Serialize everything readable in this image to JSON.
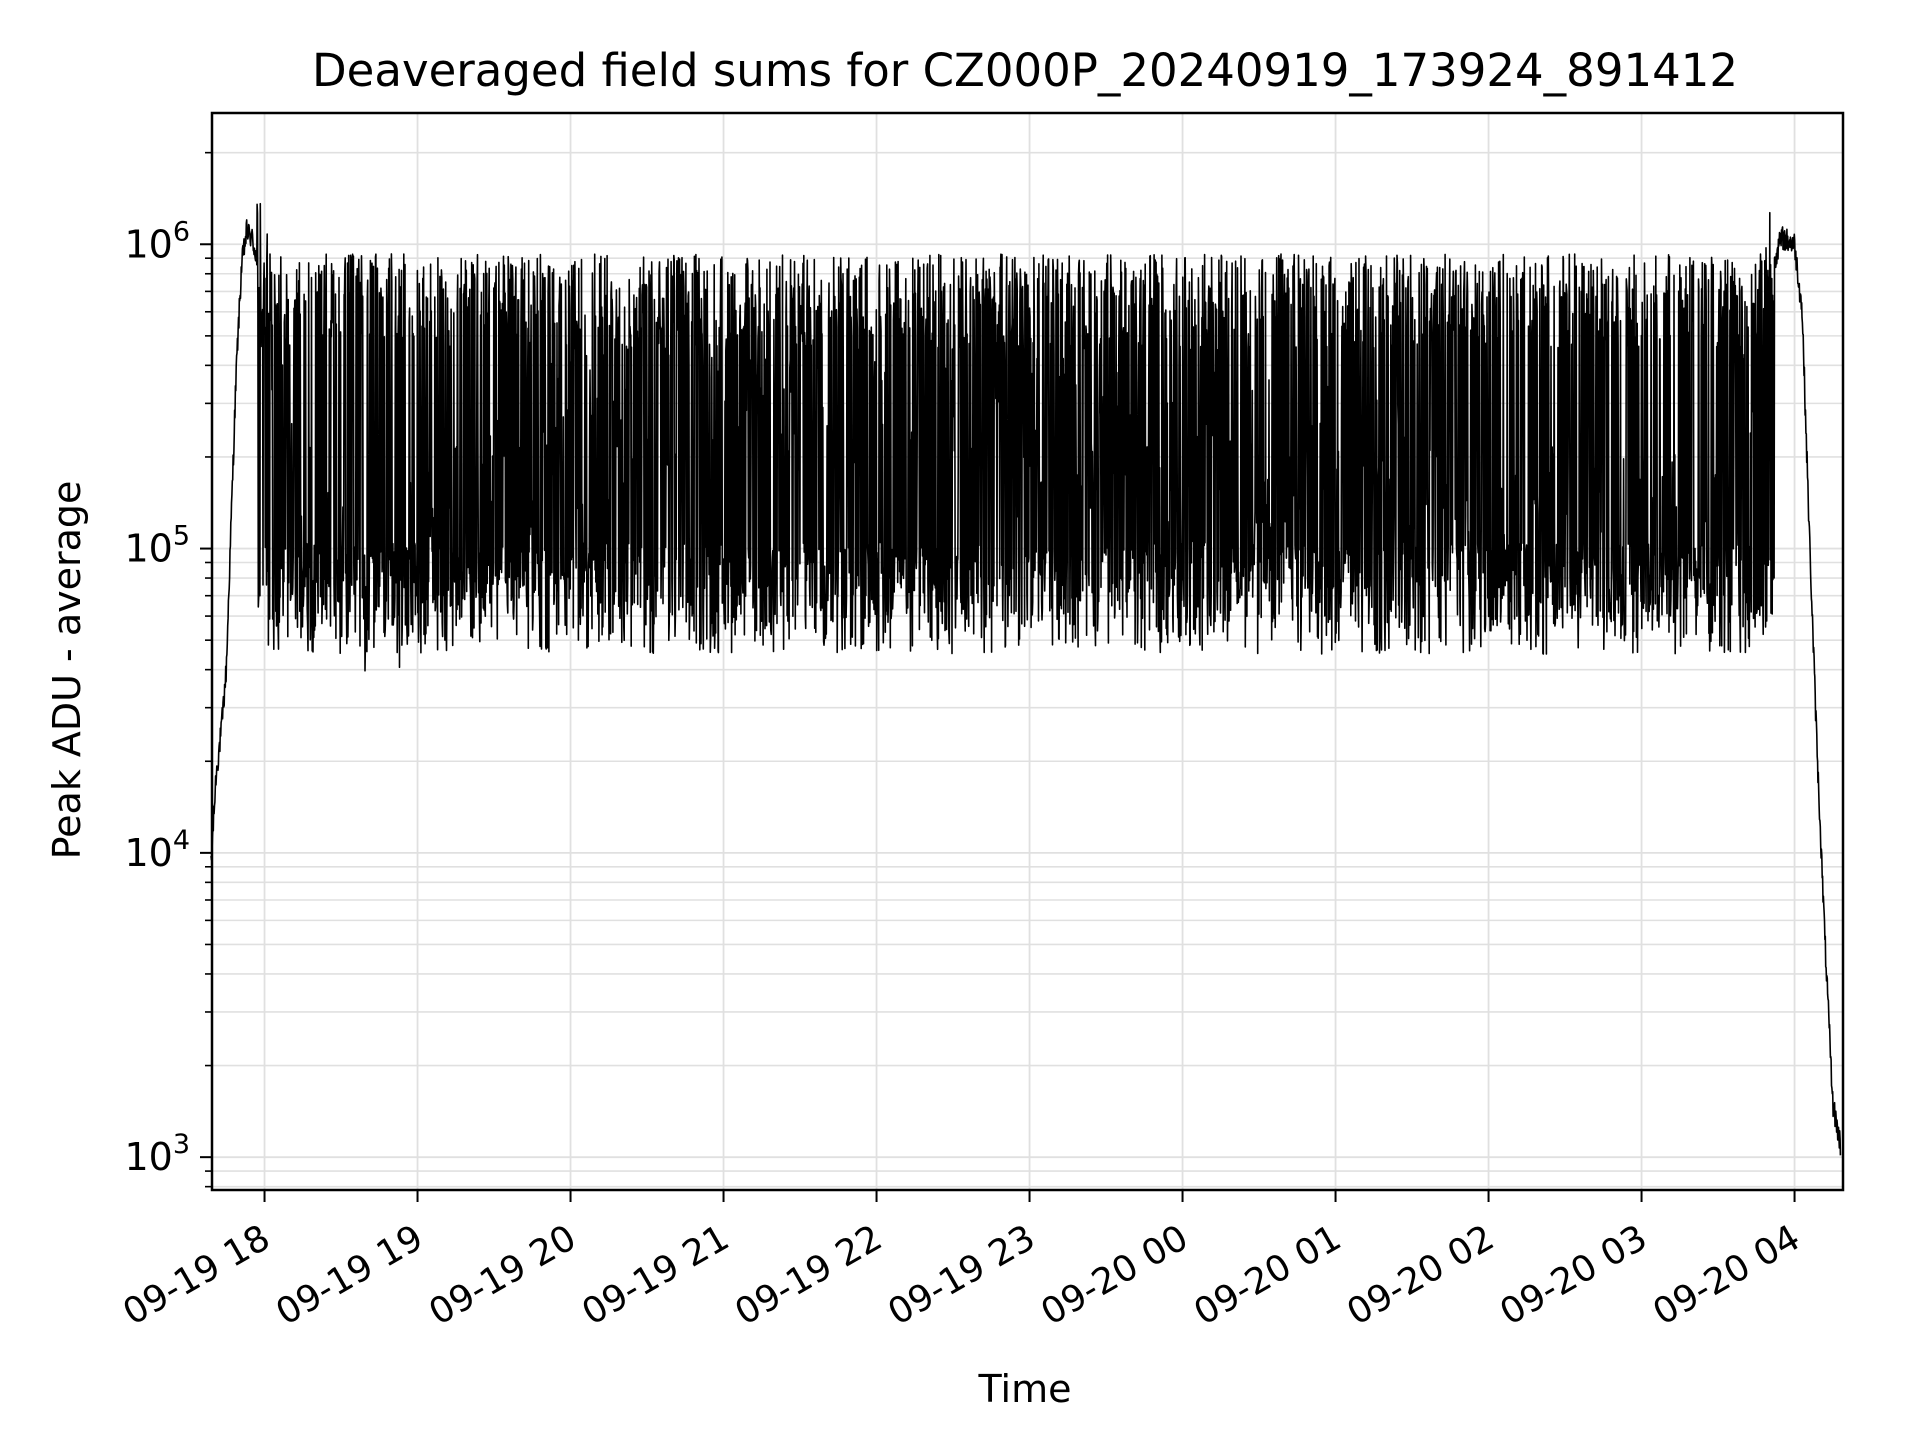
{
  "chart_data": {
    "type": "line",
    "title": "Deaveraged field sums for CZ000P_20240919_173924_891412",
    "xlabel": "Time",
    "ylabel": "Peak ADU - average",
    "yscale": "log",
    "ylim": [
      780,
      2700000
    ],
    "xlim": [
      "2024-09-19 17:39:24",
      "2024-09-20 04:19:00"
    ],
    "grid": true,
    "line_color": "#000000",
    "grid_color": "#e0e0e0",
    "x_ticks": [
      {
        "value": "2024-09-19 18:00",
        "label": "09-19 18"
      },
      {
        "value": "2024-09-19 19:00",
        "label": "09-19 19"
      },
      {
        "value": "2024-09-19 20:00",
        "label": "09-19 20"
      },
      {
        "value": "2024-09-19 21:00",
        "label": "09-19 21"
      },
      {
        "value": "2024-09-19 22:00",
        "label": "09-19 22"
      },
      {
        "value": "2024-09-19 23:00",
        "label": "09-19 23"
      },
      {
        "value": "2024-09-20 00:00",
        "label": "09-20 00"
      },
      {
        "value": "2024-09-20 01:00",
        "label": "09-20 01"
      },
      {
        "value": "2024-09-20 02:00",
        "label": "09-20 02"
      },
      {
        "value": "2024-09-20 03:00",
        "label": "09-20 03"
      },
      {
        "value": "2024-09-20 04:00",
        "label": "09-20 04"
      }
    ],
    "y_ticks": [
      {
        "value": 1000,
        "base": "10",
        "exp": "3"
      },
      {
        "value": 10000,
        "base": "10",
        "exp": "4"
      },
      {
        "value": 100000,
        "base": "10",
        "exp": "5"
      },
      {
        "value": 1000000,
        "base": "10",
        "exp": "6"
      }
    ],
    "series": [
      {
        "x": [
          "2024-09-19 17:39",
          "2024-09-19 17:41",
          "2024-09-19 17:43",
          "2024-09-19 17:45",
          "2024-09-19 17:47",
          "2024-09-19 17:49",
          "2024-09-19 17:51",
          "2024-09-19 17:53",
          "2024-09-19 17:55",
          "2024-09-19 17:57",
          "2024-09-19 17:59",
          "2024-09-19 18:02",
          "2024-09-19 18:05",
          "2024-09-19 18:08",
          "2024-09-19 18:11",
          "2024-09-19 18:14",
          "2024-09-19 18:17",
          "2024-09-19 18:20",
          "2024-09-19 18:25",
          "2024-09-19 18:30",
          "2024-09-19 18:40",
          "2024-09-19 18:50",
          "2024-09-19 19:00",
          "2024-09-19 19:15",
          "2024-09-19 19:30",
          "2024-09-19 19:45",
          "2024-09-19 20:00",
          "2024-09-19 20:20",
          "2024-09-19 20:40",
          "2024-09-19 21:00",
          "2024-09-19 21:30",
          "2024-09-19 22:00",
          "2024-09-19 22:30",
          "2024-09-19 23:00",
          "2024-09-19 23:30",
          "2024-09-20 00:00",
          "2024-09-20 00:30",
          "2024-09-20 01:00",
          "2024-09-20 01:30",
          "2024-09-20 02:00",
          "2024-09-20 02:30",
          "2024-09-20 03:00",
          "2024-09-20 03:20",
          "2024-09-20 03:30",
          "2024-09-20 03:40",
          "2024-09-20 03:45",
          "2024-09-20 03:50",
          "2024-09-20 03:55",
          "2024-09-20 04:00",
          "2024-09-20 04:03",
          "2024-09-20 04:06",
          "2024-09-20 04:09",
          "2024-09-20 04:12",
          "2024-09-20 04:15",
          "2024-09-20 04:18"
        ],
        "y": [
          9000,
          18000,
          25000,
          40000,
          130000,
          400000,
          850000,
          1100000,
          1050000,
          900000,
          780000,
          600000,
          450000,
          300000,
          200000,
          150000,
          120000,
          100000,
          85000,
          80000,
          78000,
          75000,
          90000,
          120000,
          150000,
          200000,
          250000,
          300000,
          300000,
          330000,
          320000,
          300000,
          270000,
          250000,
          230000,
          200000,
          190000,
          170000,
          150000,
          130000,
          110000,
          100000,
          110000,
          150000,
          250000,
          500000,
          800000,
          1050000,
          1000000,
          600000,
          100000,
          20000,
          5000,
          1500,
          1100
        ]
      }
    ]
  }
}
